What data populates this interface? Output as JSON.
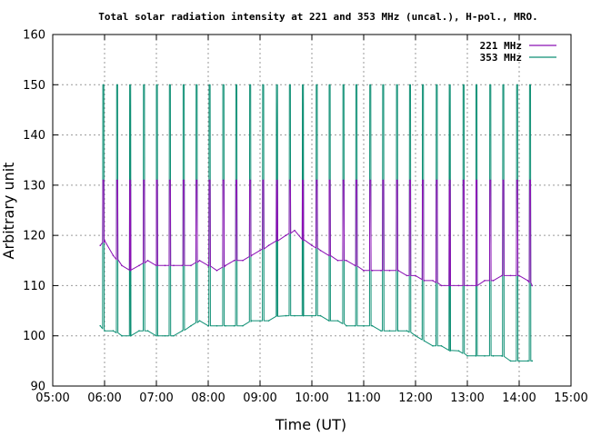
{
  "colors": {
    "s221": "#8b10b5",
    "s353": "#0e8f74",
    "grid": "#9a9a9a",
    "axis": "#000000"
  },
  "chart_data": {
    "type": "line",
    "title": "Total solar radiation intensity at 221 and 353 MHz (uncal.), H-pol., MRO.",
    "xlabel": "Time (UT)",
    "ylabel": "Arbitrary unit",
    "xlim": [
      "05:00",
      "15:00"
    ],
    "ylim": [
      90,
      160
    ],
    "x_ticks": [
      "05:00",
      "06:00",
      "07:00",
      "08:00",
      "09:00",
      "10:00",
      "11:00",
      "12:00",
      "13:00",
      "14:00",
      "15:00"
    ],
    "y_ticks": [
      90,
      100,
      110,
      120,
      130,
      140,
      150,
      160
    ],
    "grid": true,
    "legend_position": "top-right",
    "calibration_pulse_times": [
      "05:58",
      "06:14",
      "06:29",
      "06:45",
      "07:00",
      "07:15",
      "07:31",
      "07:46",
      "08:01",
      "08:17",
      "08:32",
      "08:48",
      "09:03",
      "09:19",
      "09:34",
      "09:49",
      "10:05",
      "10:20",
      "10:36",
      "10:51",
      "11:07",
      "11:22",
      "11:38",
      "11:53",
      "12:08",
      "12:24",
      "12:39",
      "12:55",
      "13:10",
      "13:26",
      "13:41",
      "13:57",
      "14:12"
    ],
    "series": [
      {
        "name": "221 MHz",
        "calibration_level": 131,
        "x": [
          "05:55",
          "06:00",
          "06:10",
          "06:20",
          "06:30",
          "06:40",
          "06:50",
          "07:00",
          "07:10",
          "07:20",
          "07:30",
          "07:40",
          "07:50",
          "08:00",
          "08:10",
          "08:20",
          "08:30",
          "08:40",
          "08:50",
          "09:00",
          "09:10",
          "09:20",
          "09:30",
          "09:40",
          "09:50",
          "10:00",
          "10:10",
          "10:20",
          "10:30",
          "10:40",
          "10:50",
          "11:00",
          "11:10",
          "11:20",
          "11:30",
          "11:40",
          "11:50",
          "12:00",
          "12:10",
          "12:20",
          "12:30",
          "12:40",
          "12:50",
          "13:00",
          "13:10",
          "13:20",
          "13:30",
          "13:40",
          "13:50",
          "14:00",
          "14:10",
          "14:15"
        ],
        "values": [
          118,
          119,
          116,
          114,
          113,
          114,
          115,
          114,
          114,
          114,
          114,
          114,
          115,
          114,
          113,
          114,
          115,
          115,
          116,
          117,
          118,
          119,
          120,
          121,
          119,
          118,
          117,
          116,
          115,
          115,
          114,
          113,
          113,
          113,
          113,
          113,
          112,
          112,
          111,
          111,
          110,
          110,
          110,
          110,
          110,
          111,
          111,
          112,
          112,
          112,
          111,
          110
        ]
      },
      {
        "name": "353 MHz",
        "calibration_level": 150,
        "x": [
          "05:55",
          "06:00",
          "06:10",
          "06:20",
          "06:30",
          "06:40",
          "06:50",
          "07:00",
          "07:10",
          "07:20",
          "07:30",
          "07:40",
          "07:50",
          "08:00",
          "08:10",
          "08:20",
          "08:30",
          "08:40",
          "08:50",
          "09:00",
          "09:10",
          "09:20",
          "09:30",
          "09:40",
          "09:50",
          "10:00",
          "10:10",
          "10:20",
          "10:30",
          "10:40",
          "10:50",
          "11:00",
          "11:10",
          "11:20",
          "11:30",
          "11:40",
          "11:50",
          "12:00",
          "12:10",
          "12:20",
          "12:30",
          "12:40",
          "12:50",
          "13:00",
          "13:10",
          "13:20",
          "13:30",
          "13:40",
          "13:50",
          "14:00",
          "14:10",
          "14:15"
        ],
        "values": [
          102,
          101,
          101,
          100,
          100,
          101,
          101,
          100,
          100,
          100,
          101,
          102,
          103,
          102,
          102,
          102,
          102,
          102,
          103,
          103,
          103,
          104,
          104,
          104,
          104,
          104,
          104,
          103,
          103,
          102,
          102,
          102,
          102,
          101,
          101,
          101,
          101,
          100,
          99,
          98,
          98,
          97,
          97,
          96,
          96,
          96,
          96,
          96,
          95,
          95,
          95,
          95
        ]
      }
    ]
  }
}
